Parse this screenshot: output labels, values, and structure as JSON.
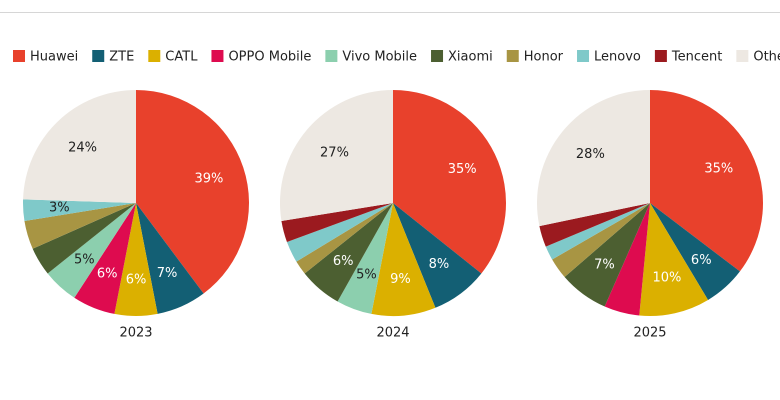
{
  "chart_data": [
    {
      "type": "pie",
      "title": "2023",
      "categories": [
        "Huawei",
        "ZTE",
        "CATL",
        "OPPO Mobile",
        "Vivo Mobile",
        "Xiaomi",
        "Honor",
        "Lenovo",
        "Tencent",
        "Other"
      ],
      "colors": [
        "#e8412c",
        "#135f74",
        "#dbb000",
        "#de0b4f",
        "#8ccfae",
        "#4c5f31",
        "#a89543",
        "#7fc9c9",
        "#9b1a1f",
        "#ede8e2"
      ],
      "values": [
        39,
        7,
        6,
        6,
        5,
        4,
        4,
        3,
        0,
        24
      ],
      "value_labels": [
        "39%",
        "7%",
        "6%",
        "6%",
        "5%",
        null,
        null,
        "3%",
        null,
        "24%"
      ]
    },
    {
      "type": "pie",
      "title": "2024",
      "categories": [
        "Huawei",
        "ZTE",
        "CATL",
        "OPPO Mobile",
        "Vivo Mobile",
        "Xiaomi",
        "Honor",
        "Lenovo",
        "Tencent",
        "Other"
      ],
      "colors": [
        "#e8412c",
        "#135f74",
        "#dbb000",
        "#de0b4f",
        "#8ccfae",
        "#4c5f31",
        "#a89543",
        "#7fc9c9",
        "#9b1a1f",
        "#ede8e2"
      ],
      "values": [
        35,
        8,
        9,
        0,
        5,
        6,
        2,
        3,
        3,
        27
      ],
      "value_labels": [
        "35%",
        "8%",
        "9%",
        null,
        "5%",
        "6%",
        null,
        null,
        null,
        "27%"
      ]
    },
    {
      "type": "pie",
      "title": "2025",
      "categories": [
        "Huawei",
        "ZTE",
        "CATL",
        "OPPO Mobile",
        "Vivo Mobile",
        "Xiaomi",
        "Honor",
        "Lenovo",
        "Tencent",
        "Other"
      ],
      "colors": [
        "#e8412c",
        "#135f74",
        "#dbb000",
        "#de0b4f",
        "#8ccfae",
        "#4c5f31",
        "#a89543",
        "#7fc9c9",
        "#9b1a1f",
        "#ede8e2"
      ],
      "values": [
        35,
        6,
        10,
        5,
        0,
        7,
        3,
        2,
        3,
        28
      ],
      "value_labels": [
        "35%",
        "6%",
        "10%",
        null,
        null,
        "7%",
        null,
        null,
        null,
        "28%"
      ]
    }
  ]
}
